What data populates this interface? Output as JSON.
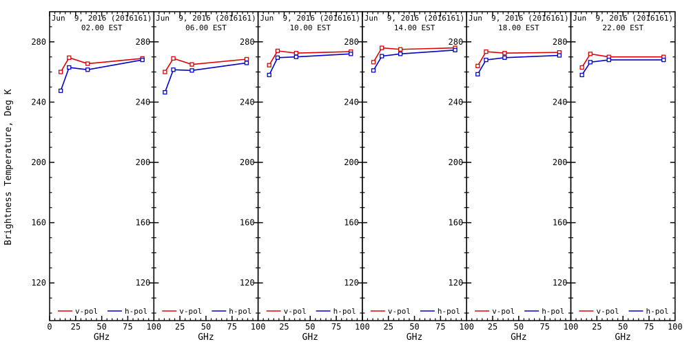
{
  "figure": {
    "background": "#ffffff",
    "axis_color": "#000000"
  },
  "chart_data": {
    "type": "line",
    "title": "Jun  9, 2016 (2016161)",
    "xlabel": "GHz",
    "ylabel": "Brightness Temperature, Deg K",
    "x": [
      10.65,
      18.7,
      36.5,
      89
    ],
    "xlim": [
      0,
      100
    ],
    "ylim": [
      95,
      300
    ],
    "x_major_ticks": [
      0,
      25,
      50,
      75,
      100
    ],
    "x_minor_step": 5,
    "y_major_ticks": [
      120,
      160,
      200,
      240,
      280
    ],
    "y_minor_step": 10,
    "grid": false,
    "legend_position": "bottom-inside-each-panel",
    "legend": [
      "v-pol",
      "h-pol"
    ],
    "series_colors": {
      "v-pol": "#dd0000",
      "h-pol": "#0000cc"
    },
    "marker": "open-square",
    "panels": [
      {
        "title_line1": "Jun  9, 2016 (2016161)",
        "title_line2": "02.00 EST",
        "series": [
          {
            "name": "v-pol",
            "color": "#dd0000",
            "values": [
              260.0,
              269.5,
              265.5,
              269.0
            ]
          },
          {
            "name": "h-pol",
            "color": "#0000cc",
            "values": [
              247.5,
              263.0,
              261.5,
              268.0
            ]
          }
        ]
      },
      {
        "title_line1": "Jun  9, 2016 (2016161)",
        "title_line2": "06.00 EST",
        "series": [
          {
            "name": "v-pol",
            "color": "#dd0000",
            "values": [
              260.0,
              269.0,
              265.0,
              268.5
            ]
          },
          {
            "name": "h-pol",
            "color": "#0000cc",
            "values": [
              246.5,
              261.5,
              261.0,
              266.0
            ]
          }
        ]
      },
      {
        "title_line1": "Jun  9, 2016 (2016161)",
        "title_line2": "10.00 EST",
        "series": [
          {
            "name": "v-pol",
            "color": "#dd0000",
            "values": [
              264.5,
              274.0,
              272.5,
              273.5
            ]
          },
          {
            "name": "h-pol",
            "color": "#0000cc",
            "values": [
              258.0,
              269.5,
              270.0,
              272.0
            ]
          }
        ]
      },
      {
        "title_line1": "Jun  9, 2016 (2016161)",
        "title_line2": "14.00 EST",
        "series": [
          {
            "name": "v-pol",
            "color": "#dd0000",
            "values": [
              266.5,
              276.0,
              275.0,
              276.0
            ]
          },
          {
            "name": "h-pol",
            "color": "#0000cc",
            "values": [
              261.0,
              270.5,
              272.0,
              274.5
            ]
          }
        ]
      },
      {
        "title_line1": "Jun  9, 2016 (2016161)",
        "title_line2": "18.00 EST",
        "series": [
          {
            "name": "v-pol",
            "color": "#dd0000",
            "values": [
              264.0,
              273.5,
              272.5,
              273.0
            ]
          },
          {
            "name": "h-pol",
            "color": "#0000cc",
            "values": [
              258.5,
              268.0,
              269.5,
              271.0
            ]
          }
        ]
      },
      {
        "title_line1": "Jun  9, 2016 (2016161)",
        "title_line2": "22.00 EST",
        "series": [
          {
            "name": "v-pol",
            "color": "#dd0000",
            "values": [
              263.0,
              272.0,
              270.0,
              270.0
            ]
          },
          {
            "name": "h-pol",
            "color": "#0000cc",
            "values": [
              258.0,
              266.5,
              268.0,
              268.0
            ]
          }
        ]
      }
    ]
  }
}
